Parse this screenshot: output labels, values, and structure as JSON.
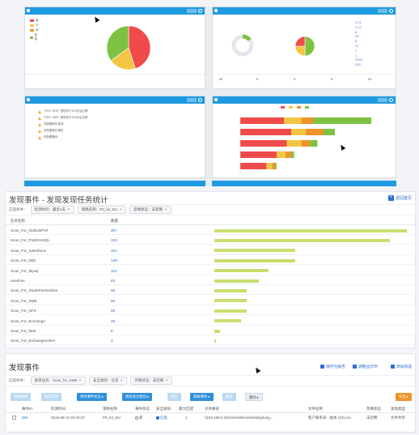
{
  "section2": {
    "title": "发现事件 - 发现发现任务统计",
    "return_label": "返回首页",
    "filter_label": "已选条件：",
    "chips": [
      {
        "label": "检测时间：最近1天"
      },
      {
        "label": "策略名称：PII_for_EU"
      },
      {
        "label": "忽略状态：未忽略"
      }
    ],
    "col_task": "任务名称",
    "col_count": "数量",
    "rows": [
      {
        "name": "Scan_For_OutlookPST",
        "count": 357,
        "frac": 1.0
      },
      {
        "name": "Scan_For_PostGreSQL",
        "count": 325,
        "frac": 0.91
      },
      {
        "name": "Scan_For_Salesforce",
        "count": 151,
        "frac": 0.42
      },
      {
        "name": "Scan_For_DB2",
        "count": 149,
        "frac": 0.42
      },
      {
        "name": "Scan_For_Mysql",
        "count": 101,
        "frac": 0.28
      },
      {
        "name": "onedrive",
        "count": 83,
        "frac": 0.23
      },
      {
        "name": "Scan_For_SharePointOnline",
        "count": 59,
        "frac": 0.17
      },
      {
        "name": "Scan_For_SMB",
        "count": 59,
        "frac": 0.17
      },
      {
        "name": "Scan_For_NFS",
        "count": 59,
        "frac": 0.17
      },
      {
        "name": "Scan_For_Exchange",
        "count": 49,
        "frac": 0.14
      },
      {
        "name": "Scan_For_Mail",
        "count": 8,
        "frac": 0.03
      },
      {
        "name": "Scan_For_Exchangeonline",
        "count": 3,
        "frac": 0.01
      }
    ]
  },
  "section3": {
    "title": "发现事件",
    "save_report": "保存为报告",
    "adjust_columns": "调整显示列",
    "add_filter": "添加筛选",
    "filter_label": "已选条件：",
    "chips": [
      {
        "label": "发现任务：Scan_for_SMB"
      },
      {
        "label": "安全级别：信息"
      },
      {
        "label": "忽略状态：未忽略"
      }
    ],
    "toolbar": [
      {
        "label": "忽略事件"
      },
      {
        "label": "取消忽略"
      },
      {
        "label": "更改事件状态 ▸"
      },
      {
        "label": "更改安全级别 ▸"
      },
      {
        "label": "锁定"
      },
      {
        "label": "隔离事件 ▸"
      },
      {
        "label": "解锁"
      },
      {
        "label": "删除 ▸"
      }
    ],
    "export_label": "导出 ▸",
    "columns": [
      "事件ID",
      "检测时间",
      "策略名称",
      "事件状态",
      "安全级别",
      "最大匹配",
      "文件路径",
      "文件名称",
      "忽略状态",
      "发现类型"
    ],
    "row": {
      "id": "384",
      "time": "2018-08-12 23:40:37",
      "policy": "PII_for_EU",
      "status": "新",
      "severity": "信息",
      "max_match": "1",
      "path": "\\\\192.168.0.20\\Users\\demo\\Desktop\\ung...",
      "filename": "客户联系表 - 副本 (10).csv",
      "ignore": "未忽略",
      "type": "文件共享"
    }
  },
  "dashboard": {
    "pie1": [
      {
        "value": 45,
        "color": "#f04b4b"
      },
      {
        "value": 20,
        "color": "#f4c542"
      },
      {
        "value": 35,
        "color": "#7ec242"
      }
    ],
    "legend": [
      {
        "label": "高",
        "color": "#f04b4b"
      },
      {
        "label": "中",
        "color": "#f4c542"
      },
      {
        "label": "低",
        "color": "#f0932b"
      },
      {
        "label": "信息",
        "color": "#7ec242"
      }
    ],
    "pie_small": [
      {
        "value": 50,
        "color": "#7ec242"
      },
      {
        "value": 25,
        "color": "#f4c542"
      },
      {
        "value": 25,
        "color": "#f04b4b"
      }
    ],
    "stats_top": [
      "1.21",
      "1.12",
      "8",
      "16",
      "5",
      "11",
      "7",
      "1",
      "1304",
      "220"
    ],
    "stacked": [
      [
        0.3,
        0.12,
        0.08,
        0.4
      ],
      [
        0.35,
        0.1,
        0.12,
        0.08
      ],
      [
        0.32,
        0.1,
        0.06,
        0.05
      ],
      [
        0.25,
        0.06,
        0.04,
        0.02
      ],
      [
        0.18,
        0.04,
        0.02,
        0.01
      ]
    ],
    "stack_colors": [
      "#f04b4b",
      "#f4c542",
      "#f0932b",
      "#7ec242"
    ],
    "list": [
      {
        "label": "\"DPIC 4030\" 授权将于100天后过期"
      },
      {
        "label": "\"DPIC 4800\" 授权将于100天后过期"
      },
      {
        "label": "未配置邮件发送"
      },
      {
        "label": "未配置事件报告"
      },
      {
        "label": "未配置备份"
      }
    ],
    "bottom_counts": [
      "42",
      "0",
      "0",
      "0",
      "42"
    ]
  }
}
